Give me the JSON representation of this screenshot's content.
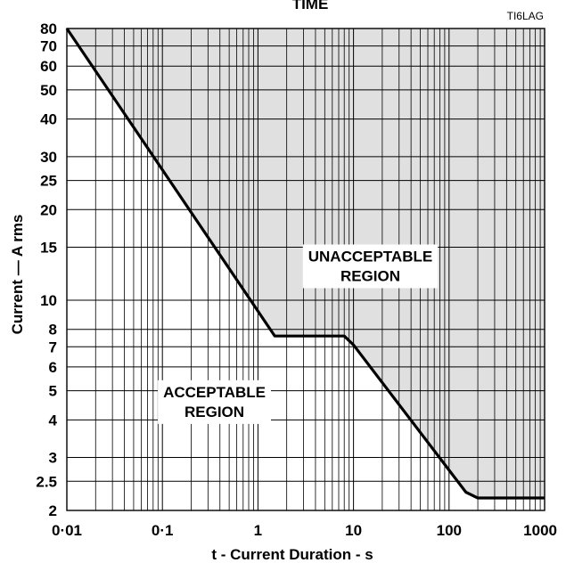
{
  "chart_data": {
    "type": "line",
    "title": "TIME",
    "reference": "TI6LAG",
    "xlabel": "t - Current Duration - s",
    "ylabel": "Current  —  A rms",
    "x_scale": "log",
    "y_scale": "log",
    "xlim": [
      0.01,
      1000
    ],
    "ylim": [
      2,
      80
    ],
    "grid": true,
    "x_ticks": [
      {
        "value": 0.01,
        "label": "0·01"
      },
      {
        "value": 0.1,
        "label": "0·1"
      },
      {
        "value": 1,
        "label": "1"
      },
      {
        "value": 10,
        "label": "10"
      },
      {
        "value": 100,
        "label": "100"
      },
      {
        "value": 1000,
        "label": "1000"
      }
    ],
    "y_ticks": [
      {
        "value": 2,
        "label": "2"
      },
      {
        "value": 2.5,
        "label": "2.5"
      },
      {
        "value": 3,
        "label": "3"
      },
      {
        "value": 4,
        "label": "4"
      },
      {
        "value": 5,
        "label": "5"
      },
      {
        "value": 6,
        "label": "6"
      },
      {
        "value": 7,
        "label": "7"
      },
      {
        "value": 8,
        "label": "8"
      },
      {
        "value": 10,
        "label": "10"
      },
      {
        "value": 15,
        "label": "15"
      },
      {
        "value": 20,
        "label": "20"
      },
      {
        "value": 25,
        "label": "25"
      },
      {
        "value": 30,
        "label": "30"
      },
      {
        "value": 40,
        "label": "40"
      },
      {
        "value": 50,
        "label": "50"
      },
      {
        "value": 60,
        "label": "60"
      },
      {
        "value": 70,
        "label": "70"
      },
      {
        "value": 80,
        "label": "80"
      }
    ],
    "series": [
      {
        "points": [
          {
            "x": 0.01,
            "y": 80
          },
          {
            "x": 1.5,
            "y": 7.6
          },
          {
            "x": 8,
            "y": 7.6
          },
          {
            "x": 10,
            "y": 7.1
          },
          {
            "x": 150,
            "y": 2.3
          },
          {
            "x": 200,
            "y": 2.2
          },
          {
            "x": 1000,
            "y": 2.2
          }
        ]
      }
    ],
    "regions": [
      {
        "label_lines": [
          "UNACCEPTABLE",
          "REGION"
        ],
        "x": 15,
        "y": 13,
        "side": "above",
        "fill": "#e0e0e0"
      },
      {
        "label_lines": [
          "ACCEPTABLE",
          "REGION"
        ],
        "x": 0.35,
        "y": 4.6,
        "side": "below",
        "fill": "#ffffff"
      }
    ],
    "colors": {
      "shade": "#e0e0e0",
      "line": "#000000",
      "grid": "#000000"
    }
  }
}
